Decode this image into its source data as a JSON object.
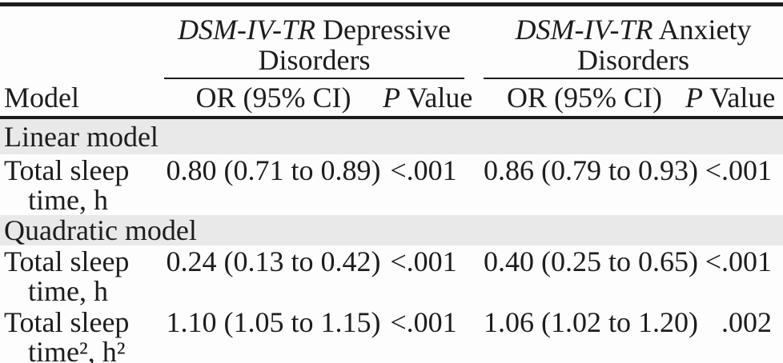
{
  "table": {
    "model_header": "Model",
    "groups": [
      {
        "name_italic": "DSM-IV-TR",
        "name_rest": " Depressive",
        "name_line2": "Disorders",
        "or_header": "OR (95% CI)",
        "p_header_italic": "P",
        "p_header_rest": " Value"
      },
      {
        "name_italic": "DSM-IV-TR",
        "name_rest": " Anxiety",
        "name_line2": "Disorders",
        "or_header": "OR (95% CI)",
        "p_header_italic": "P",
        "p_header_rest": " Value"
      }
    ],
    "sections": [
      {
        "label": "Linear model",
        "rows": [
          {
            "model_line1": "Total sleep",
            "model_line2": "time, h",
            "dep_or": "0.80 (0.71 to 0.89)",
            "dep_p": "<.001",
            "anx_or": "0.86 (0.79 to 0.93)",
            "anx_p": "<.001"
          }
        ]
      },
      {
        "label": "Quadratic model",
        "rows": [
          {
            "model_line1": "Total sleep",
            "model_line2": "time, h",
            "dep_or": "0.24 (0.13 to 0.42)",
            "dep_p": "<.001",
            "anx_or": "0.40 (0.25 to 0.65)",
            "anx_p": "<.001"
          },
          {
            "model_line1": "Total sleep",
            "model_line2": "time², h²",
            "dep_or": "1.10 (1.05 to 1.15)",
            "dep_p": "<.001",
            "anx_or": "1.06 (1.02 to 1.20)",
            "anx_p": ".002"
          }
        ]
      }
    ],
    "colors": {
      "band": "#e9e9e9",
      "rule": "#1c1c1c",
      "text": "#1d1d1d"
    }
  }
}
